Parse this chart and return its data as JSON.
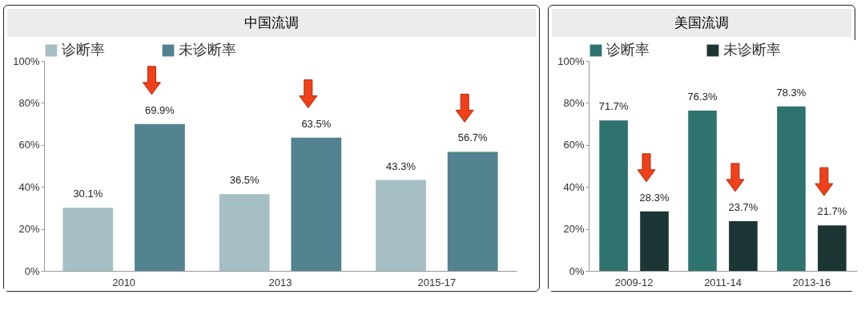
{
  "chart_data": [
    {
      "type": "bar",
      "title": "中国流调",
      "categories": [
        "2010",
        "2013",
        "2015-17"
      ],
      "series": [
        {
          "name": "诊断率",
          "color": "#a6bfc5",
          "values": [
            30.1,
            36.5,
            43.3
          ],
          "value_labels": [
            "30.1%",
            "36.5%",
            "43.3%"
          ]
        },
        {
          "name": "未诊断率",
          "color": "#52828f",
          "values": [
            69.9,
            63.5,
            56.7
          ],
          "value_labels": [
            "69.9%",
            "63.5%",
            "56.7%"
          ]
        }
      ],
      "ylim": [
        0,
        100
      ],
      "yticks": [
        {
          "value": 0,
          "label": "0%"
        },
        {
          "value": 20,
          "label": "20%"
        },
        {
          "value": 40,
          "label": "40%"
        },
        {
          "value": 60,
          "label": "60%"
        },
        {
          "value": 80,
          "label": "80%"
        },
        {
          "value": 100,
          "label": "100%"
        }
      ],
      "legend": "top",
      "grid": false
    },
    {
      "type": "bar",
      "title": "美国流调",
      "categories": [
        "2009-12",
        "2011-14",
        "2013-16"
      ],
      "series": [
        {
          "name": "诊断率",
          "color": "#2f736f",
          "values": [
            71.7,
            76.3,
            78.3
          ],
          "value_labels": [
            "71.7%",
            "76.3%",
            "78.3%"
          ]
        },
        {
          "name": "未诊断率",
          "color": "#1c3535",
          "values": [
            28.3,
            23.7,
            21.7
          ],
          "value_labels": [
            "28.3%",
            "23.7%",
            "21.7%"
          ]
        }
      ],
      "ylim": [
        0,
        100
      ],
      "yticks": [
        {
          "value": 0,
          "label": "0%"
        },
        {
          "value": 20,
          "label": "20%"
        },
        {
          "value": 40,
          "label": "40%"
        },
        {
          "value": 60,
          "label": "60%"
        },
        {
          "value": 80,
          "label": "80%"
        },
        {
          "value": 100,
          "label": "100%"
        }
      ],
      "legend": "top",
      "grid": false
    }
  ]
}
